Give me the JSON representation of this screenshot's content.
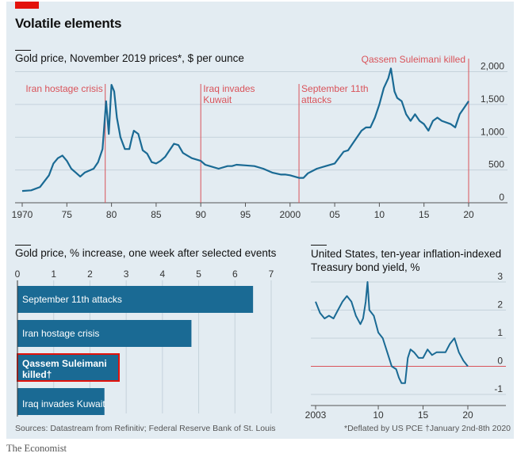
{
  "title": "Volatile elements",
  "brand": "The Economist",
  "footer": {
    "sources": "Sources: Datastream from Refinitiv; Federal Reserve Bank of St. Louis",
    "note1": "*Deflated by US PCE",
    "note2": "†January 2nd-8th 2020"
  },
  "colors": {
    "line": "#1a6a94",
    "annotation": "#d9535a",
    "bar": "#1a6a94",
    "highlight": "#e3120b",
    "background": "#e3ecf2",
    "grid": "#c5d2db"
  },
  "chart_data": [
    {
      "type": "line",
      "title": "Gold price, November 2019 prices*, $ per ounce",
      "x_ticks": [
        "1970",
        "75",
        "80",
        "85",
        "90",
        "95",
        "2000",
        "05",
        "10",
        "15",
        "20"
      ],
      "x_tick_values": [
        1970,
        1975,
        1980,
        1985,
        1990,
        1995,
        2000,
        2005,
        2010,
        2015,
        2020
      ],
      "y_ticks": [
        "0",
        "500",
        "1,000",
        "1,500",
        "2,000"
      ],
      "ylim": [
        0,
        2200
      ],
      "xlim": [
        1970,
        2020
      ],
      "grid": true,
      "annotations": [
        {
          "label": "Iran hostage crisis",
          "x": 1979.3
        },
        {
          "label": "Iraq invades Kuwait",
          "x": 1990.0
        },
        {
          "label": "September 11th attacks",
          "x": 2001.0
        },
        {
          "label": "Qassem Suleimani killed",
          "x": 2020.0
        }
      ],
      "x": [
        1970,
        1971,
        1972,
        1973,
        1973.5,
        1974,
        1974.5,
        1975,
        1975.5,
        1976,
        1976.5,
        1977,
        1978,
        1978.5,
        1979,
        1979.4,
        1979.7,
        1980,
        1980.3,
        1980.6,
        1981,
        1981.5,
        1982,
        1982.3,
        1982.5,
        1983,
        1983.5,
        1984,
        1984.5,
        1985,
        1985.5,
        1986,
        1986.5,
        1987,
        1987.5,
        1988,
        1988.5,
        1989,
        1990,
        1990.5,
        1991,
        1992,
        1993,
        1993.5,
        1994,
        1995,
        1996,
        1997,
        1998,
        1999,
        1999.5,
        2000,
        2001,
        2001.5,
        2002,
        2003,
        2004,
        2005,
        2006,
        2006.5,
        2007,
        2008,
        2008.5,
        2009,
        2009.5,
        2010,
        2010.5,
        2011,
        2011.3,
        2011.7,
        2012,
        2012.5,
        2013,
        2013.5,
        2014,
        2014.5,
        2015,
        2015.5,
        2016,
        2016.5,
        2017,
        2018,
        2018.5,
        2019,
        2019.5,
        2020
      ],
      "values": [
        180,
        190,
        240,
        420,
        600,
        680,
        720,
        640,
        520,
        460,
        400,
        460,
        520,
        620,
        820,
        1550,
        1050,
        1800,
        1700,
        1300,
        1000,
        820,
        820,
        1000,
        1100,
        1050,
        800,
        750,
        620,
        600,
        640,
        700,
        800,
        900,
        880,
        760,
        720,
        680,
        640,
        580,
        560,
        520,
        560,
        560,
        580,
        570,
        560,
        520,
        460,
        430,
        430,
        420,
        380,
        380,
        450,
        520,
        560,
        600,
        780,
        800,
        900,
        1100,
        1150,
        1150,
        1300,
        1500,
        1750,
        1900,
        2050,
        1700,
        1600,
        1550,
        1350,
        1250,
        1350,
        1250,
        1200,
        1100,
        1250,
        1300,
        1250,
        1200,
        1150,
        1350,
        1450,
        1550
      ]
    },
    {
      "type": "bar",
      "orientation": "horizontal",
      "title": "Gold price, % increase, one week after selected events",
      "x_ticks": [
        "0",
        "1",
        "2",
        "3",
        "4",
        "5",
        "6",
        "7"
      ],
      "xlim": [
        0,
        7
      ],
      "categories": [
        "September 11th attacks",
        "Iran hostage crisis",
        "Qassem Suleimani killed†",
        "Iraq invades Kuwait"
      ],
      "values": [
        6.5,
        4.8,
        2.8,
        2.4
      ],
      "highlight": "Qassem Suleimani killed†"
    },
    {
      "type": "line",
      "title": "United States, ten-year inflation-indexed Treasury bond yield, %",
      "x_ticks": [
        "2003",
        "10",
        "15",
        "20"
      ],
      "x_tick_values": [
        2003,
        2010,
        2015,
        2020
      ],
      "y_ticks": [
        "-1",
        "0",
        "1",
        "2",
        "3"
      ],
      "ylim": [
        -1,
        3
      ],
      "xlim": [
        2003,
        2020
      ],
      "grid": true,
      "x": [
        2003,
        2003.5,
        2004,
        2004.5,
        2005,
        2005.5,
        2006,
        2006.5,
        2007,
        2007.5,
        2008,
        2008.3,
        2008.6,
        2008.8,
        2009,
        2009.5,
        2010,
        2010.5,
        2011,
        2011.5,
        2012,
        2012.3,
        2012.6,
        2013,
        2013.3,
        2013.6,
        2014,
        2014.5,
        2015,
        2015.5,
        2016,
        2016.5,
        2017,
        2017.5,
        2018,
        2018.5,
        2019,
        2019.5,
        2020
      ],
      "values": [
        2.3,
        1.9,
        1.7,
        1.8,
        1.7,
        2.0,
        2.3,
        2.5,
        2.3,
        1.8,
        1.5,
        1.7,
        2.3,
        3.0,
        2.0,
        1.8,
        1.2,
        1.0,
        0.5,
        0.0,
        -0.1,
        -0.4,
        -0.6,
        -0.6,
        0.3,
        0.6,
        0.5,
        0.3,
        0.3,
        0.6,
        0.4,
        0.5,
        0.5,
        0.5,
        0.8,
        1.0,
        0.5,
        0.2,
        0.0
      ]
    }
  ]
}
